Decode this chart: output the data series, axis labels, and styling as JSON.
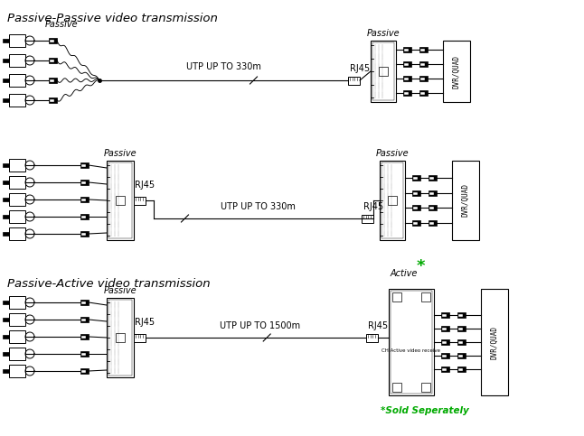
{
  "title1": "Passive-Passive video transmission",
  "title2": "Passive-Active video transmission",
  "label_passive": "Passive",
  "label_active": "Active",
  "label_rj45": "RJ45",
  "label_utp1": "UTP UP TO 330m",
  "label_utp2": "UTP UP TO 330m",
  "label_utp3": "UTP UP TO 1500m",
  "label_dvr": "DVR/QUAD",
  "label_sold": "*Sold Seperately",
  "label_star": "*",
  "bg_color": "#ffffff",
  "line_color": "#000000",
  "green_color": "#00aa00",
  "title_fontsize": 9.5,
  "label_fontsize": 7,
  "small_fontsize": 6
}
